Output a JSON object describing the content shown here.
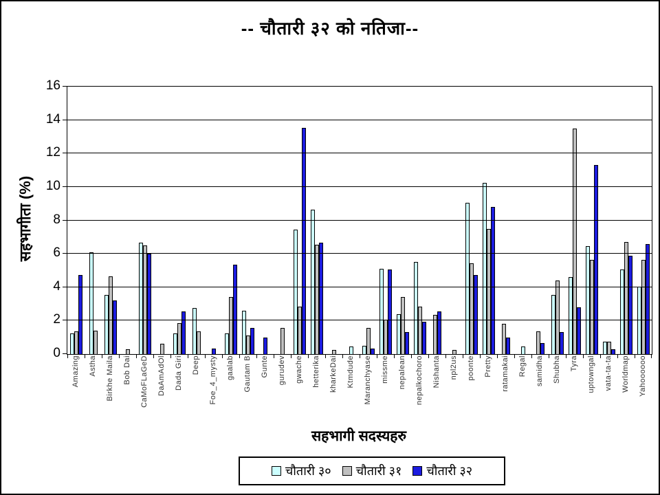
{
  "title": "-- चौतारी  ३२ को नतिजा--",
  "chart_data": {
    "type": "bar",
    "title": "-- चौतारी  ३२ को नतिजा--",
    "xlabel": "सहभागी सदस्यहरु",
    "ylabel": "सहभागीता  (%)",
    "ylim": [
      0,
      16
    ],
    "ytick_step": 2,
    "grid": true,
    "legend_position": "bottom",
    "categories": [
      "Amazing",
      "Astha",
      "Birkhe Maila",
      "Bob Dai",
      "CaMoFLaGeD",
      "DaAmAdOl",
      "Dada Giri",
      "Deep",
      "Foe_4_mysty",
      "gaalab",
      "Gautam B",
      "Gunte",
      "gurudev",
      "gwache",
      "hetterika",
      "kharkeDai",
      "Ktmdude",
      "Maranchyase",
      "missme",
      "nepalean",
      "nepalkochoro",
      "Nishanta",
      "npl2us",
      "poonte",
      "Pretty",
      "ratamakai",
      "Regal",
      "samidha",
      "Shubha",
      "Tyra",
      "uptowngal",
      "vata-ta-ta",
      "Worldmap",
      "Yahoooooo"
    ],
    "series": [
      {
        "name": "चौतारी ३०",
        "color": "#CCFFFF",
        "values": [
          1.25,
          6.1,
          3.55,
          0,
          6.65,
          0,
          1.25,
          2.75,
          0,
          1.25,
          2.6,
          0,
          0,
          7.45,
          8.65,
          0,
          0.45,
          0.5,
          5.1,
          2.4,
          5.5,
          0,
          0,
          9.05,
          10.25,
          0,
          0.45,
          0,
          3.55,
          4.6,
          6.45,
          0.75,
          5.05,
          4.05
        ]
      },
      {
        "name": "चौतारी ३१",
        "color": "#C0C0C0",
        "values": [
          1.35,
          1.4,
          4.65,
          0.3,
          6.5,
          0.6,
          1.85,
          1.35,
          0,
          3.4,
          1.1,
          0,
          1.55,
          2.85,
          6.55,
          0.25,
          0,
          1.55,
          2.05,
          3.4,
          2.85,
          2.35,
          0.25,
          5.45,
          7.5,
          1.8,
          0,
          1.35,
          4.4,
          13.5,
          5.65,
          0.75,
          6.7,
          5.65
        ]
      },
      {
        "name": "चौतारी ३२",
        "color": "#1C1CE0",
        "values": [
          4.75,
          0,
          3.2,
          0,
          6.0,
          0,
          2.55,
          0,
          0.35,
          5.35,
          1.55,
          1.0,
          0,
          13.55,
          6.65,
          0,
          0,
          0.35,
          5.05,
          1.3,
          1.95,
          2.55,
          0,
          4.75,
          8.8,
          1.0,
          0,
          0.65,
          1.3,
          2.8,
          11.3,
          0.3,
          5.9,
          6.6
        ]
      }
    ]
  }
}
